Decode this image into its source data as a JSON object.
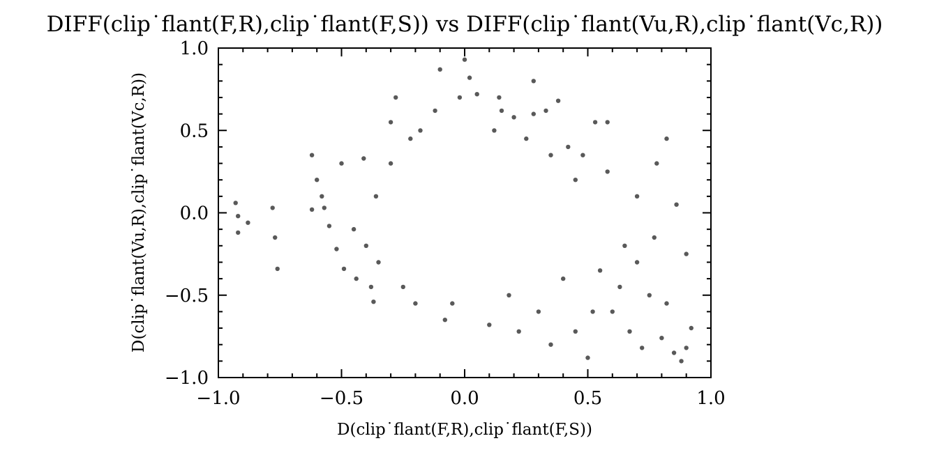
{
  "chart_data": {
    "type": "scatter",
    "title": "DIFF(clip˙flant(F,R),clip˙flant(F,S)) vs DIFF(clip˙flant(Vu,R),clip˙flant(Vc,R))",
    "xlabel": "D(clip˙flant(F,R),clip˙flant(F,S))",
    "ylabel": "D(clip˙flant(Vu,R),clip˙flant(Vc,R))",
    "xlim": [
      -1.0,
      1.0
    ],
    "ylim": [
      -1.0,
      1.0
    ],
    "xticks": [
      -1.0,
      -0.5,
      0.0,
      0.5,
      1.0
    ],
    "yticks": [
      -1.0,
      -0.5,
      0.0,
      0.5,
      1.0
    ],
    "xtick_labels": [
      "−1.0",
      "−0.5",
      "0.0",
      "0.5",
      "1.0"
    ],
    "ytick_labels": [
      "−1.0",
      "−0.5",
      "0.0",
      "0.5",
      "1.0"
    ],
    "grid": false,
    "legend": "none",
    "marker_color": "#000000",
    "marker_opacity": 0.65,
    "series": [
      {
        "x": [
          -0.93,
          -0.92,
          -0.88,
          -0.92,
          -0.78,
          -0.76,
          -0.77,
          -0.62,
          -0.6,
          -0.57,
          -0.55,
          -0.5,
          -0.52,
          -0.49,
          -0.62,
          -0.58,
          -0.44,
          -0.41,
          -0.38,
          -0.37,
          -0.36,
          -0.4,
          -0.45,
          -0.3,
          -0.28,
          -0.1,
          0.0,
          0.02,
          0.05,
          0.14,
          0.28,
          0.38,
          0.53,
          0.58,
          0.78,
          0.82,
          0.8,
          0.88,
          0.9,
          0.9,
          0.92,
          0.85,
          0.72,
          0.6,
          0.67,
          0.75,
          0.55,
          0.5,
          0.45,
          0.63,
          0.7,
          0.77,
          0.86,
          0.82,
          0.65,
          0.52,
          0.4,
          0.35,
          0.3,
          0.22,
          0.1,
          -0.08,
          -0.2,
          -0.25,
          -0.35,
          -0.05,
          0.18,
          0.25,
          0.48,
          0.58,
          0.7,
          0.42,
          0.33,
          0.28,
          0.12,
          -0.02,
          -0.12,
          -0.18,
          0.15,
          0.2,
          0.35,
          0.45,
          -0.22,
          -0.3
        ],
        "y": [
          0.06,
          -0.12,
          -0.06,
          -0.02,
          0.03,
          -0.34,
          -0.15,
          0.35,
          0.2,
          0.03,
          -0.08,
          0.3,
          -0.22,
          -0.34,
          0.02,
          0.1,
          -0.4,
          0.33,
          -0.45,
          -0.54,
          0.1,
          -0.2,
          -0.1,
          0.55,
          0.7,
          0.87,
          0.93,
          0.82,
          0.72,
          0.7,
          0.8,
          0.68,
          0.55,
          0.55,
          0.3,
          0.45,
          -0.76,
          -0.9,
          -0.82,
          -0.25,
          -0.7,
          -0.85,
          -0.82,
          -0.6,
          -0.72,
          -0.5,
          -0.35,
          -0.88,
          -0.72,
          -0.45,
          -0.3,
          -0.15,
          0.05,
          -0.55,
          -0.2,
          -0.6,
          -0.4,
          -0.8,
          -0.6,
          -0.72,
          -0.68,
          -0.65,
          -0.55,
          -0.45,
          -0.3,
          -0.55,
          -0.5,
          0.45,
          0.35,
          0.25,
          0.1,
          0.4,
          0.62,
          0.6,
          0.5,
          0.7,
          0.62,
          0.5,
          0.62,
          0.58,
          0.35,
          0.2,
          0.45,
          0.3
        ]
      }
    ]
  }
}
